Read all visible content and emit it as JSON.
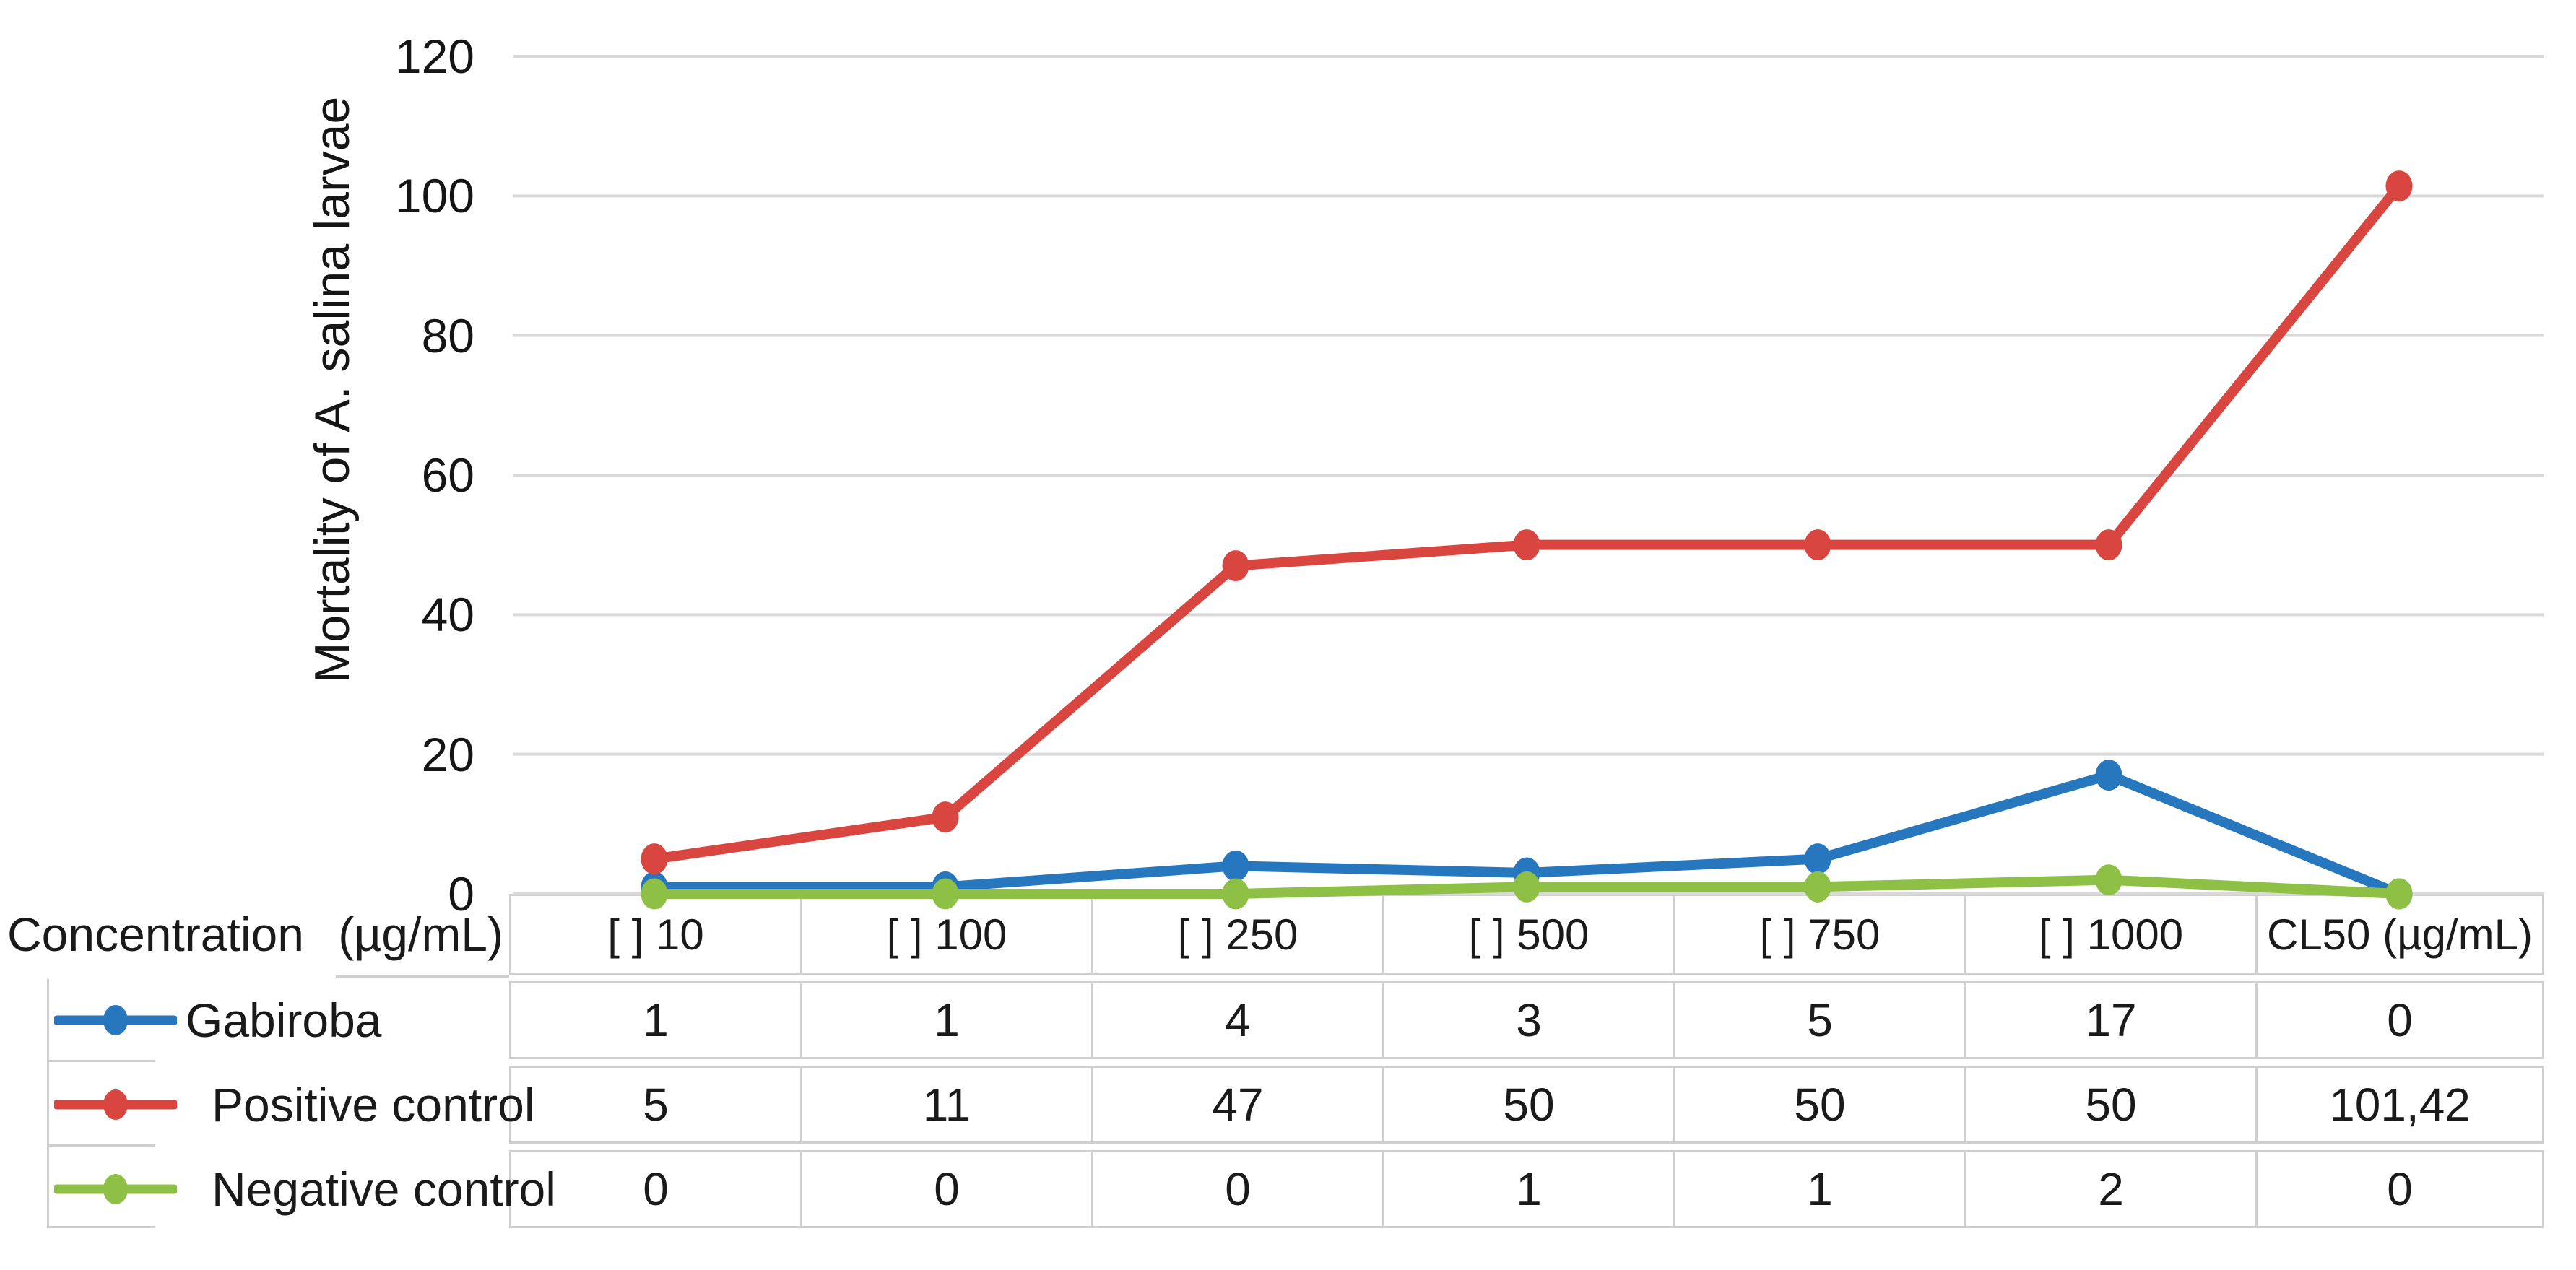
{
  "chart_data": {
    "type": "line",
    "title": "",
    "ylabel": "Mortality of A. salina larvae",
    "xlabel": "Concentration  (µg/mL)",
    "categories": [
      "[ ] 10",
      "[ ] 100",
      "[ ] 250",
      "[ ] 500",
      "[ ] 750",
      "[ ] 1000",
      "CL50 (µg/mL)"
    ],
    "series": [
      {
        "name": "Gabiroba",
        "color": "#2677BD",
        "values": [
          1,
          1,
          4,
          3,
          5,
          17,
          0
        ]
      },
      {
        "name": "Positive control",
        "color": "#D9453F",
        "values": [
          5,
          11,
          47,
          50,
          50,
          50,
          101.42
        ]
      },
      {
        "name": "Negative control",
        "color": "#8DC045",
        "values": [
          0,
          0,
          0,
          1,
          1,
          2,
          0
        ]
      }
    ],
    "y_ticks": [
      0,
      20,
      40,
      60,
      80,
      100,
      120
    ],
    "ylim": [
      0,
      120
    ],
    "grid": true,
    "legend_position": "left-of-data-table"
  },
  "table": {
    "header_left": {
      "part1": "Concentration",
      "part2": "(µg/mL)"
    },
    "columns": [
      "[ ] 10",
      "[ ] 100",
      "[ ] 250",
      "[ ] 500",
      "[ ] 750",
      "[ ] 1000",
      "CL50 (µg/mL)"
    ],
    "rows": [
      {
        "label": "Gabiroba",
        "values": [
          "1",
          "1",
          "4",
          "3",
          "5",
          "17",
          "0"
        ]
      },
      {
        "label": "Positive control",
        "values": [
          "5",
          "11",
          "47",
          "50",
          "50",
          "50",
          "101,42"
        ]
      },
      {
        "label": "Negative control",
        "values": [
          "0",
          "0",
          "0",
          "1",
          "1",
          "2",
          "0"
        ]
      }
    ]
  },
  "colors": {
    "series_blue": "#2677BD",
    "series_red": "#D9453F",
    "series_green": "#8DC045",
    "gridline": "#D9D9D9",
    "table_border": "#CFCFCF",
    "text": "#1A1A1A"
  }
}
